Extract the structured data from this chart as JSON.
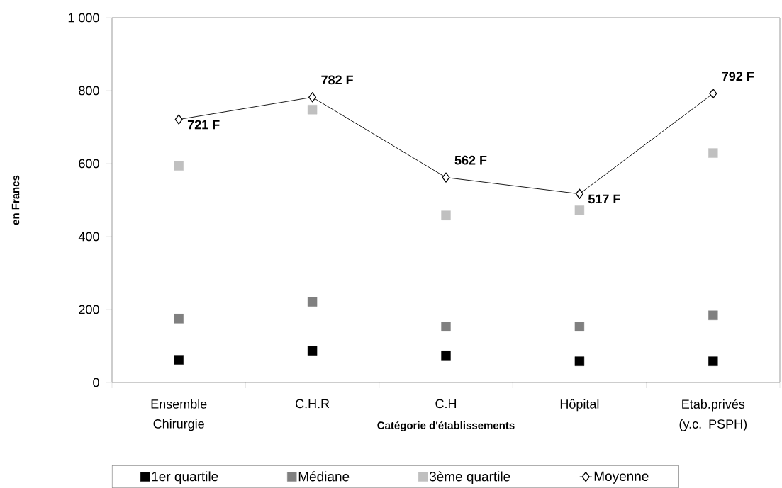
{
  "chart_data": {
    "type": "scatter",
    "categories": [
      "Ensemble Chirurgie",
      "C.H.R",
      "C.H",
      "Hôpital",
      "Etab.privés (y.c. PSPH)"
    ],
    "xlabel": "Catégorie d'établissements",
    "ylabel": "en Francs",
    "ylim": [
      0,
      1000
    ],
    "yticks": [
      0,
      200,
      400,
      600,
      800,
      {
        "value": 1000,
        "label": "1 000"
      }
    ],
    "grid": false,
    "legend": "bottom",
    "series": [
      {
        "name": "1er quartile",
        "marker": "square",
        "color": "#000000",
        "values": [
          62,
          87,
          74,
          58,
          58
        ]
      },
      {
        "name": "Médiane",
        "marker": "square",
        "color": "#808080",
        "values": [
          175,
          221,
          153,
          153,
          184
        ]
      },
      {
        "name": "3ème quartile",
        "marker": "square",
        "color": "#c0c0c0",
        "values": [
          594,
          748,
          458,
          472,
          629
        ]
      },
      {
        "name": "Moyenne",
        "type": "line",
        "marker": "diamond",
        "color": "#000000",
        "values": [
          721,
          782,
          562,
          517,
          792
        ],
        "value_labels": [
          "721 F",
          "782 F",
          "562 F",
          "517 F",
          "792 F"
        ]
      }
    ]
  }
}
